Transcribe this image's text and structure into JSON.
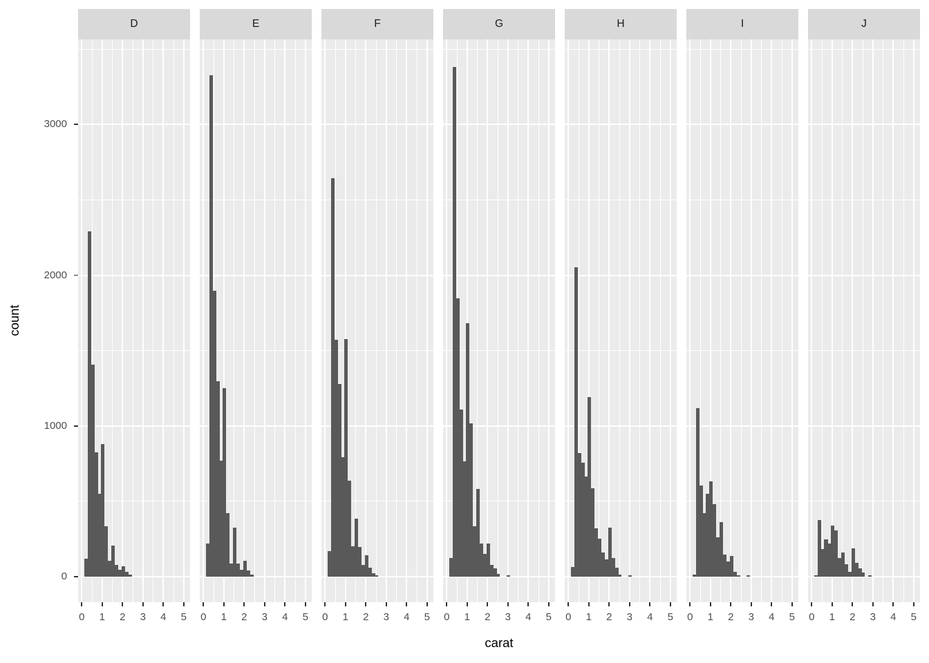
{
  "figure": {
    "kind": "faceted histogram (ggplot2 style)",
    "background": "#FFFFFF"
  },
  "x_axis": {
    "title": "carat",
    "tick_labels": [
      "0",
      "1",
      "2",
      "3",
      "4",
      "5"
    ],
    "tick_values": [
      0,
      1,
      2,
      3,
      4,
      5
    ]
  },
  "y_axis": {
    "title": "count",
    "tick_labels": [
      "0",
      "1000",
      "2000",
      "3000"
    ],
    "tick_values": [
      0,
      1000,
      2000,
      3000
    ]
  },
  "facets": [
    "D",
    "E",
    "F",
    "G",
    "H",
    "I",
    "J"
  ],
  "colors": {
    "bar": "#595959",
    "panel_bg": "#EBEBEB",
    "strip_bg": "#D9D9D9",
    "grid": "#FFFFFF",
    "tick_mark": "#333333",
    "tick_text": "#4D4D4D",
    "axis_title_text": "#000000",
    "strip_text": "#1a1a1a",
    "background": "#FFFFFF"
  },
  "chart_data": {
    "type": "bar",
    "subtype": "histogram-faceted",
    "facet_variable": "color",
    "x_variable": "carat",
    "y_variable": "count",
    "bin_start": 0.117,
    "bin_width": 0.166,
    "xlim": [
      -0.05,
      5.25
    ],
    "ylim": [
      0,
      3565
    ],
    "grid": "on",
    "x_major_gridlines": [
      0,
      1,
      2,
      3,
      4,
      5
    ],
    "x_minor_gridlines": [
      0.5,
      1.5,
      2.5,
      3.5,
      4.5
    ],
    "y_major_gridlines": [
      0,
      1000,
      2000,
      3000
    ],
    "y_minor_gridlines": [
      500,
      1500,
      2500,
      3500
    ],
    "series": [
      {
        "facet": "D",
        "counts": [
          118,
          2292,
          1407,
          825,
          550,
          881,
          336,
          107,
          206,
          77,
          46,
          69,
          32,
          12
        ]
      },
      {
        "facet": "E",
        "counts": [
          221,
          3327,
          1899,
          1297,
          772,
          1253,
          420,
          87,
          325,
          87,
          46,
          107,
          41,
          15
        ]
      },
      {
        "facet": "F",
        "counts": [
          168,
          2645,
          1574,
          1279,
          794,
          1577,
          637,
          203,
          385,
          198,
          77,
          141,
          61,
          23,
          8
        ]
      },
      {
        "facet": "G",
        "counts": [
          122,
          3384,
          1849,
          1108,
          764,
          1681,
          1016,
          336,
          581,
          221,
          153,
          219,
          77,
          55,
          20,
          0,
          0,
          8
        ]
      },
      {
        "facet": "H",
        "counts": [
          64,
          2052,
          820,
          756,
          665,
          1192,
          588,
          321,
          252,
          160,
          115,
          324,
          122,
          61,
          15,
          0,
          0,
          10
        ]
      },
      {
        "facet": "I",
        "counts": [
          15,
          1118,
          607,
          423,
          550,
          634,
          481,
          260,
          362,
          145,
          99,
          137,
          30,
          10,
          0,
          0,
          8
        ]
      },
      {
        "facet": "J",
        "counts": [
          11,
          374,
          183,
          248,
          222,
          341,
          306,
          122,
          160,
          84,
          30,
          190,
          92,
          54,
          26,
          0,
          11
        ]
      }
    ]
  }
}
